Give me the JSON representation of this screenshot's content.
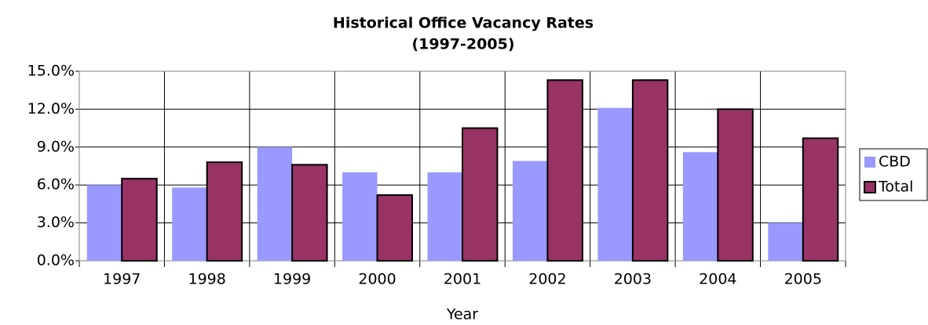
{
  "chart_data": {
    "type": "bar",
    "title": "Historical Office Vacancy Rates",
    "subtitle": "(1997-2005)",
    "x_label": "Year",
    "categories": [
      "1997",
      "1998",
      "1999",
      "2000",
      "2001",
      "2002",
      "2003",
      "2004",
      "2005"
    ],
    "series": [
      {
        "name": "CBD",
        "color": "#9999ff",
        "values": [
          6.0,
          5.8,
          9.0,
          7.0,
          7.0,
          7.9,
          12.1,
          8.6,
          3.0
        ]
      },
      {
        "name": "Total",
        "color": "#993366",
        "values": [
          6.5,
          7.8,
          7.6,
          5.2,
          10.5,
          14.3,
          14.3,
          12.0,
          9.7
        ]
      }
    ],
    "ylim": [
      0,
      15
    ],
    "yticks": [
      {
        "value": 0,
        "label": "0.0%"
      },
      {
        "value": 3,
        "label": "3.0%"
      },
      {
        "value": 6,
        "label": "6.0%"
      },
      {
        "value": 9,
        "label": "9.0%"
      },
      {
        "value": 12,
        "label": "12.0%"
      },
      {
        "value": 15,
        "label": "15.0%"
      }
    ],
    "grid": true,
    "legend": "right"
  }
}
